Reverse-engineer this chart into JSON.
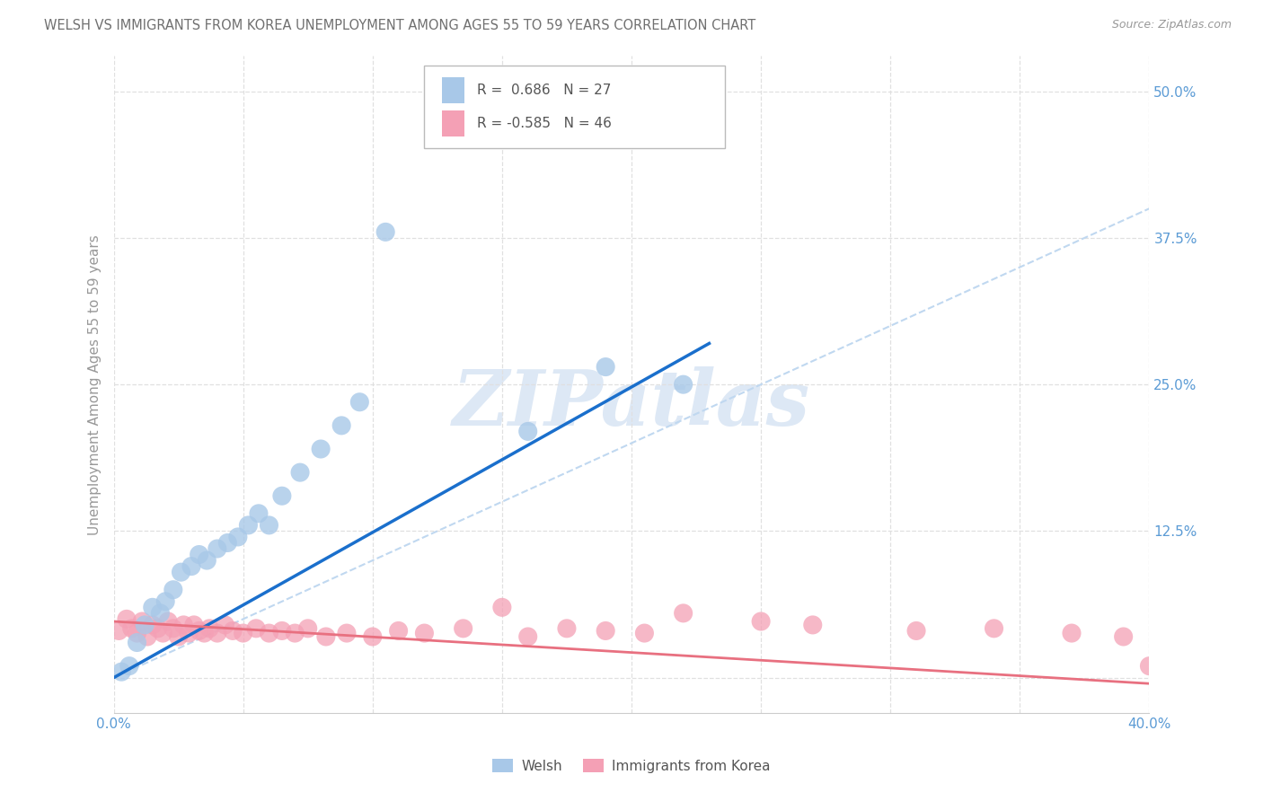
{
  "title": "WELSH VS IMMIGRANTS FROM KOREA UNEMPLOYMENT AMONG AGES 55 TO 59 YEARS CORRELATION CHART",
  "source": "Source: ZipAtlas.com",
  "ylabel": "Unemployment Among Ages 55 to 59 years",
  "xlim": [
    0.0,
    0.4
  ],
  "ylim": [
    -0.03,
    0.53
  ],
  "welsh_R": "0.686",
  "welsh_N": "27",
  "korea_R": "-0.585",
  "korea_N": "46",
  "welsh_color": "#a8c8e8",
  "korea_color": "#f4a0b5",
  "welsh_line_color": "#1a6fcc",
  "korea_line_color": "#e87080",
  "diag_line_color": "#c0d8f0",
  "watermark_text": "ZIPatlas",
  "watermark_color": "#dde8f5",
  "title_color": "#606060",
  "axis_color": "#5b9bd5",
  "grid_color": "#e0e0e0",
  "welsh_x": [
    0.003,
    0.006,
    0.009,
    0.012,
    0.015,
    0.018,
    0.02,
    0.023,
    0.026,
    0.03,
    0.033,
    0.036,
    0.04,
    0.044,
    0.048,
    0.052,
    0.056,
    0.06,
    0.065,
    0.072,
    0.08,
    0.088,
    0.095,
    0.105,
    0.16,
    0.19,
    0.22
  ],
  "welsh_y": [
    0.005,
    0.01,
    0.03,
    0.045,
    0.06,
    0.055,
    0.065,
    0.075,
    0.09,
    0.095,
    0.105,
    0.1,
    0.11,
    0.115,
    0.12,
    0.13,
    0.14,
    0.13,
    0.155,
    0.175,
    0.195,
    0.215,
    0.235,
    0.38,
    0.21,
    0.265,
    0.25
  ],
  "korea_x": [
    0.002,
    0.005,
    0.007,
    0.009,
    0.011,
    0.013,
    0.015,
    0.017,
    0.019,
    0.021,
    0.023,
    0.025,
    0.027,
    0.029,
    0.031,
    0.033,
    0.035,
    0.037,
    0.04,
    0.043,
    0.046,
    0.05,
    0.055,
    0.06,
    0.065,
    0.07,
    0.075,
    0.082,
    0.09,
    0.1,
    0.11,
    0.12,
    0.135,
    0.15,
    0.16,
    0.175,
    0.19,
    0.205,
    0.22,
    0.25,
    0.27,
    0.31,
    0.34,
    0.37,
    0.39,
    0.4
  ],
  "korea_y": [
    0.04,
    0.05,
    0.042,
    0.038,
    0.048,
    0.035,
    0.045,
    0.042,
    0.038,
    0.048,
    0.042,
    0.035,
    0.045,
    0.038,
    0.045,
    0.04,
    0.038,
    0.042,
    0.038,
    0.045,
    0.04,
    0.038,
    0.042,
    0.038,
    0.04,
    0.038,
    0.042,
    0.035,
    0.038,
    0.035,
    0.04,
    0.038,
    0.042,
    0.06,
    0.035,
    0.042,
    0.04,
    0.038,
    0.055,
    0.048,
    0.045,
    0.04,
    0.042,
    0.038,
    0.035,
    0.01
  ],
  "welsh_line_x": [
    0.0,
    0.23
  ],
  "welsh_line_y": [
    0.0,
    0.285
  ],
  "korea_line_x": [
    0.0,
    0.4
  ],
  "korea_line_y": [
    0.048,
    -0.005
  ]
}
